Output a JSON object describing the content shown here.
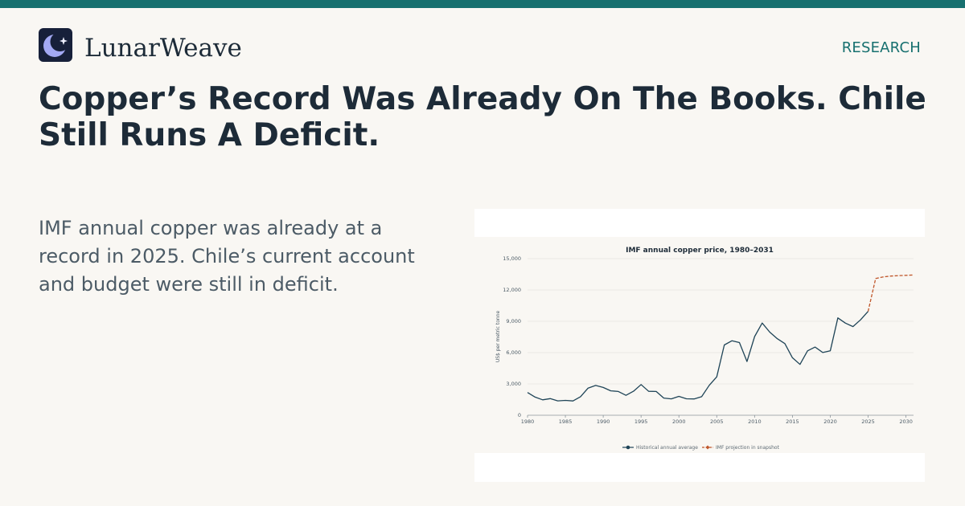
{
  "brand": {
    "name": "LunarWeave"
  },
  "nav": {
    "section": "RESEARCH"
  },
  "headline": "Copper’s Record Was Already On The Books. Chile Still Runs A Deficit.",
  "summary": "IMF annual copper was already at a record in 2025. Chile’s current account and budget were still in deficit.",
  "colors": {
    "accent": "#17706f",
    "historical": "#1f4457",
    "projection": "#c0562a"
  },
  "chart_data": {
    "type": "line",
    "title": "IMF annual copper price, 1980–2031",
    "xlabel": "",
    "ylabel": "US$ per metric tonne",
    "xlim": [
      1980,
      2031
    ],
    "ylim": [
      0,
      15000
    ],
    "x_ticks": [
      "1980",
      "1985",
      "1990",
      "1995",
      "2000",
      "2005",
      "2010",
      "2015",
      "2020",
      "2025",
      "2030"
    ],
    "y_ticks": [
      "0",
      "3,000",
      "6,000",
      "9,000",
      "12,000",
      "15,000"
    ],
    "grid": true,
    "legend_position": "bottom-center",
    "series": [
      {
        "name": "Historical annual average",
        "style": "solid",
        "x": [
          1980,
          1981,
          1982,
          1983,
          1984,
          1985,
          1986,
          1987,
          1988,
          1989,
          1990,
          1991,
          1992,
          1993,
          1994,
          1995,
          1996,
          1997,
          1998,
          1999,
          2000,
          2001,
          2002,
          2003,
          2004,
          2005,
          2006,
          2007,
          2008,
          2009,
          2010,
          2011,
          2012,
          2013,
          2014,
          2015,
          2016,
          2017,
          2018,
          2019,
          2020,
          2021,
          2022,
          2023,
          2024,
          2025
        ],
        "y": [
          2180,
          1740,
          1480,
          1590,
          1380,
          1420,
          1370,
          1780,
          2600,
          2850,
          2660,
          2340,
          2280,
          1910,
          2300,
          2940,
          2290,
          2280,
          1650,
          1570,
          1810,
          1580,
          1560,
          1780,
          2860,
          3680,
          6730,
          7130,
          6960,
          5150,
          7540,
          8830,
          7960,
          7330,
          6860,
          5510,
          4870,
          6170,
          6530,
          6010,
          6180,
          9320,
          8820,
          8490,
          9140,
          9950
        ]
      },
      {
        "name": "IMF projection in snapshot",
        "style": "dashed",
        "x": [
          2025,
          2026,
          2027,
          2028,
          2029,
          2030,
          2031
        ],
        "y": [
          9950,
          13100,
          13250,
          13330,
          13370,
          13400,
          13430
        ]
      }
    ]
  }
}
